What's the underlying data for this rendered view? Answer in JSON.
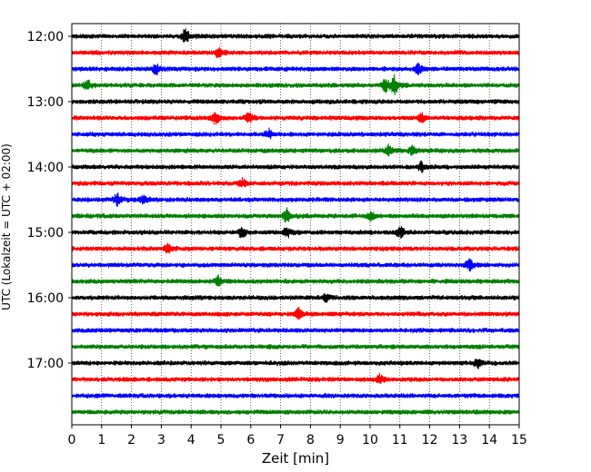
{
  "chart_data": {
    "type": "line",
    "title": "",
    "xlabel": "Zeit  [min]",
    "ylabel": "UTC (Lokalzeit = UTC + 02:00)",
    "xlim": [
      0,
      15
    ],
    "x_ticks": [
      0,
      1,
      2,
      3,
      4,
      5,
      6,
      7,
      8,
      9,
      10,
      11,
      12,
      13,
      14,
      15
    ],
    "y_tick_labels": [
      "12:00",
      "13:00",
      "14:00",
      "15:00",
      "16:00",
      "17:00"
    ],
    "grid": "vertical dotted",
    "traces_per_hour": 4,
    "trace_start_times": [
      "12:00",
      "12:15",
      "12:30",
      "12:45",
      "13:00",
      "13:15",
      "13:30",
      "13:45",
      "14:00",
      "14:15",
      "14:30",
      "14:45",
      "15:00",
      "15:15",
      "15:30",
      "15:45",
      "16:00",
      "16:15",
      "16:30",
      "16:45",
      "17:00",
      "17:15",
      "17:30",
      "17:45"
    ],
    "colors": [
      "#000000",
      "#ff0000",
      "#0000ff",
      "#008000"
    ],
    "events": [
      {
        "trace": 0,
        "x": 3.8,
        "amp": 2.6
      },
      {
        "trace": 1,
        "x": 4.9,
        "amp": 1.6
      },
      {
        "trace": 2,
        "x": 2.8,
        "amp": 1.8
      },
      {
        "trace": 2,
        "x": 11.6,
        "amp": 1.8
      },
      {
        "trace": 3,
        "x": 0.5,
        "amp": 1.8
      },
      {
        "trace": 3,
        "x": 10.8,
        "amp": 3.5
      },
      {
        "trace": 3,
        "x": 10.5,
        "amp": 2.2
      },
      {
        "trace": 5,
        "x": 4.8,
        "amp": 2.3
      },
      {
        "trace": 5,
        "x": 5.9,
        "amp": 1.9
      },
      {
        "trace": 5,
        "x": 11.7,
        "amp": 1.6
      },
      {
        "trace": 6,
        "x": 6.6,
        "amp": 1.7
      },
      {
        "trace": 7,
        "x": 10.6,
        "amp": 1.7
      },
      {
        "trace": 7,
        "x": 11.4,
        "amp": 1.4
      },
      {
        "trace": 8,
        "x": 11.7,
        "amp": 1.7
      },
      {
        "trace": 9,
        "x": 5.7,
        "amp": 1.5
      },
      {
        "trace": 10,
        "x": 1.5,
        "amp": 2.2
      },
      {
        "trace": 10,
        "x": 2.4,
        "amp": 1.7
      },
      {
        "trace": 11,
        "x": 7.2,
        "amp": 2.2
      },
      {
        "trace": 11,
        "x": 10.0,
        "amp": 1.5
      },
      {
        "trace": 12,
        "x": 5.7,
        "amp": 1.8
      },
      {
        "trace": 12,
        "x": 7.2,
        "amp": 1.6
      },
      {
        "trace": 12,
        "x": 11.0,
        "amp": 2.0
      },
      {
        "trace": 13,
        "x": 3.2,
        "amp": 1.7
      },
      {
        "trace": 14,
        "x": 13.3,
        "amp": 2.0
      },
      {
        "trace": 15,
        "x": 4.9,
        "amp": 1.8
      },
      {
        "trace": 16,
        "x": 8.5,
        "amp": 1.5
      },
      {
        "trace": 17,
        "x": 7.6,
        "amp": 1.9
      },
      {
        "trace": 20,
        "x": 13.6,
        "amp": 1.8
      },
      {
        "trace": 21,
        "x": 10.3,
        "amp": 1.6
      }
    ]
  }
}
